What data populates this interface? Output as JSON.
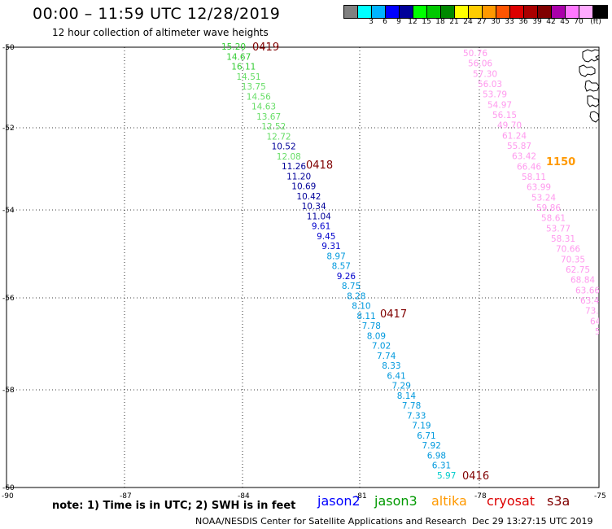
{
  "header": {
    "title": "00:00 – 11:59 UTC 12/28/2019",
    "subtitle": "12 hour collection of altimeter wave heights"
  },
  "legend": {
    "unit": "(ft)",
    "colors": [
      "#808080",
      "#00ffff",
      "#00b4ff",
      "#0000ff",
      "#000099",
      "#00ff00",
      "#00c800",
      "#008800",
      "#ffff00",
      "#ffcc00",
      "#ff9900",
      "#ff5500",
      "#dd0000",
      "#aa0000",
      "#800000",
      "#aa00aa",
      "#ff77ff",
      "#ffaaff",
      "#000000"
    ],
    "labels": [
      "3",
      "6",
      "9",
      "12",
      "15",
      "18",
      "21",
      "24",
      "27",
      "30",
      "33",
      "36",
      "39",
      "42",
      "45",
      "70"
    ]
  },
  "axes": {
    "lat_labels": [
      "-50",
      "-52",
      "-54",
      "-56",
      "-58",
      "-60"
    ],
    "lat_values": [
      -50,
      -52,
      -54,
      -56,
      -58,
      -60
    ],
    "lon_labels": [
      "-90",
      "-87",
      "-84",
      "-81",
      "-78",
      "-75"
    ],
    "lon_values": [
      -90,
      -87,
      -84,
      -81,
      -78,
      -75
    ]
  },
  "tracks": {
    "main": {
      "points": [
        {
          "v": "15.20",
          "c": "#33cc33"
        },
        {
          "v": "14.67",
          "c": "#33cc33"
        },
        {
          "v": "16.11",
          "c": "#33cc33"
        },
        {
          "v": "14.51",
          "c": "#66dd66"
        },
        {
          "v": "13.75",
          "c": "#66dd66"
        },
        {
          "v": "14.56",
          "c": "#66dd66"
        },
        {
          "v": "14.63",
          "c": "#66dd66"
        },
        {
          "v": "13.67",
          "c": "#66dd66"
        },
        {
          "v": "12.52",
          "c": "#66dd66"
        },
        {
          "v": "12.72",
          "c": "#66dd66"
        },
        {
          "v": "10.52",
          "c": "#000099"
        },
        {
          "v": "12.08",
          "c": "#66dd66"
        },
        {
          "v": "11.26",
          "c": "#000099"
        },
        {
          "v": "11.20",
          "c": "#000099"
        },
        {
          "v": "10.69",
          "c": "#000099"
        },
        {
          "v": "10.42",
          "c": "#000099"
        },
        {
          "v": "10.34",
          "c": "#000099"
        },
        {
          "v": "11.04",
          "c": "#000099"
        },
        {
          "v": "9.61",
          "c": "#0000cc"
        },
        {
          "v": "9.45",
          "c": "#0000cc"
        },
        {
          "v": "9.31",
          "c": "#0000cc"
        },
        {
          "v": "8.97",
          "c": "#0099dd"
        },
        {
          "v": "8.57",
          "c": "#0099dd"
        },
        {
          "v": "9.26",
          "c": "#0000cc"
        },
        {
          "v": "8.75",
          "c": "#0099dd"
        },
        {
          "v": "8.28",
          "c": "#0099dd"
        },
        {
          "v": "8.10",
          "c": "#0099dd"
        },
        {
          "v": "8.11",
          "c": "#0099dd"
        },
        {
          "v": "7.78",
          "c": "#0099dd"
        },
        {
          "v": "8.09",
          "c": "#0099dd"
        },
        {
          "v": "7.02",
          "c": "#0099dd"
        },
        {
          "v": "7.74",
          "c": "#0099dd"
        },
        {
          "v": "8.33",
          "c": "#0099dd"
        },
        {
          "v": "6.41",
          "c": "#0099dd"
        },
        {
          "v": "7.29",
          "c": "#0099dd"
        },
        {
          "v": "8.14",
          "c": "#0099dd"
        },
        {
          "v": "7.78",
          "c": "#0099dd"
        },
        {
          "v": "7.33",
          "c": "#0099dd"
        },
        {
          "v": "7.19",
          "c": "#0099dd"
        },
        {
          "v": "6.71",
          "c": "#0099dd"
        },
        {
          "v": "7.92",
          "c": "#0099dd"
        },
        {
          "v": "6.98",
          "c": "#0099dd"
        },
        {
          "v": "6.31",
          "c": "#0099dd"
        },
        {
          "v": "5.97",
          "c": "#00cccc"
        }
      ],
      "times": [
        {
          "t": "0419",
          "c": "#800000"
        },
        {
          "t": "0418",
          "c": "#800000"
        },
        {
          "t": "0417",
          "c": "#800000"
        },
        {
          "t": "0416",
          "c": "#800000"
        }
      ]
    },
    "east": {
      "points": [
        {
          "v": "50.76",
          "c": "#ff99ee"
        },
        {
          "v": "56.06",
          "c": "#ff99ee"
        },
        {
          "v": "57.30",
          "c": "#ff99ee"
        },
        {
          "v": "56.03",
          "c": "#ff99ee"
        },
        {
          "v": "53.79",
          "c": "#ff99ee"
        },
        {
          "v": "54.97",
          "c": "#ff99ee"
        },
        {
          "v": "56.15",
          "c": "#ff99ee"
        },
        {
          "v": "49.70",
          "c": "#ff99ee"
        },
        {
          "v": "61.24",
          "c": "#ff99ee"
        },
        {
          "v": "55.87",
          "c": "#ff99ee"
        },
        {
          "v": "63.42",
          "c": "#ff99ee"
        },
        {
          "v": "66.46",
          "c": "#ff99ee"
        },
        {
          "v": "58.11",
          "c": "#ff99ee"
        },
        {
          "v": "63.99",
          "c": "#ff99ee"
        },
        {
          "v": "53.24",
          "c": "#ff99ee"
        },
        {
          "v": "59.86",
          "c": "#ff99ee"
        },
        {
          "v": "58.61",
          "c": "#ff99ee"
        },
        {
          "v": "53.77",
          "c": "#ff99ee"
        },
        {
          "v": "58.31",
          "c": "#ff99ee"
        },
        {
          "v": "70.66",
          "c": "#ff99ee"
        },
        {
          "v": "70.35",
          "c": "#ff99ee"
        },
        {
          "v": "62.75",
          "c": "#ff99ee"
        },
        {
          "v": "68.84",
          "c": "#ff99ee"
        },
        {
          "v": "63.66",
          "c": "#ff99ee"
        },
        {
          "v": "63.46",
          "c": "#ff99ee"
        },
        {
          "v": "73.7",
          "c": "#ff99ee"
        },
        {
          "v": "64.",
          "c": "#ff99ee"
        },
        {
          "v": "5",
          "c": "#ff99ee"
        }
      ],
      "times": [
        {
          "t": "1150",
          "c": "#ff9900"
        }
      ]
    }
  },
  "note": "note:  1) Time is in UTC;  2) SWH is in feet",
  "satellites": [
    {
      "name": "jason2",
      "color": "#0000ff"
    },
    {
      "name": "jason3",
      "color": "#009900"
    },
    {
      "name": "altika",
      "color": "#ff9900"
    },
    {
      "name": "cryosat",
      "color": "#dd0000"
    },
    {
      "name": "s3a",
      "color": "#800000"
    }
  ],
  "footer": {
    "credit": "NOAA/NESDIS Center for Satellite Applications and Research",
    "timestamp": "Dec 29 13:27:15 UTC 2019"
  }
}
